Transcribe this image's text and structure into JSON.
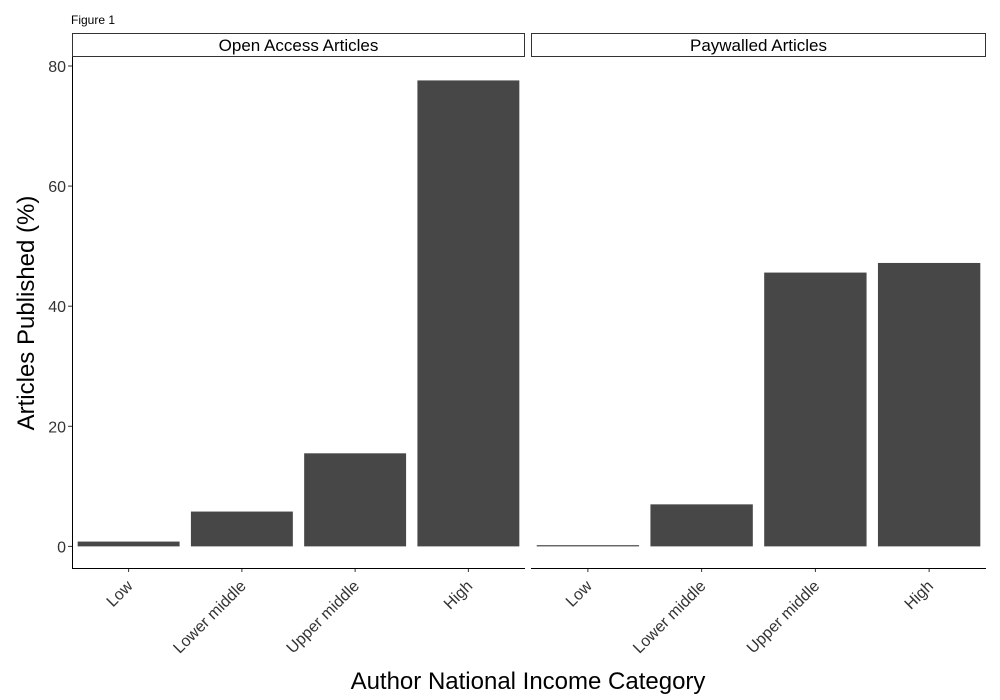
{
  "figure_label": "Figure 1",
  "chart_data": {
    "type": "bar",
    "xlabel": "Author National Income Category",
    "ylabel": "Articles Published (%)",
    "ylim": [
      -3.6,
      81.5
    ],
    "yticks": [
      0,
      20,
      40,
      60,
      80
    ],
    "categories": [
      "Low",
      "Lower middle",
      "Upper middle",
      "High"
    ],
    "bar_color": "#474747",
    "grid": false,
    "panels": [
      {
        "name": "Open Access Articles",
        "values": [
          0.8,
          5.8,
          15.5,
          77.6
        ]
      },
      {
        "name": "Paywalled Articles",
        "values": [
          0.2,
          7.0,
          45.6,
          47.2
        ]
      }
    ]
  }
}
